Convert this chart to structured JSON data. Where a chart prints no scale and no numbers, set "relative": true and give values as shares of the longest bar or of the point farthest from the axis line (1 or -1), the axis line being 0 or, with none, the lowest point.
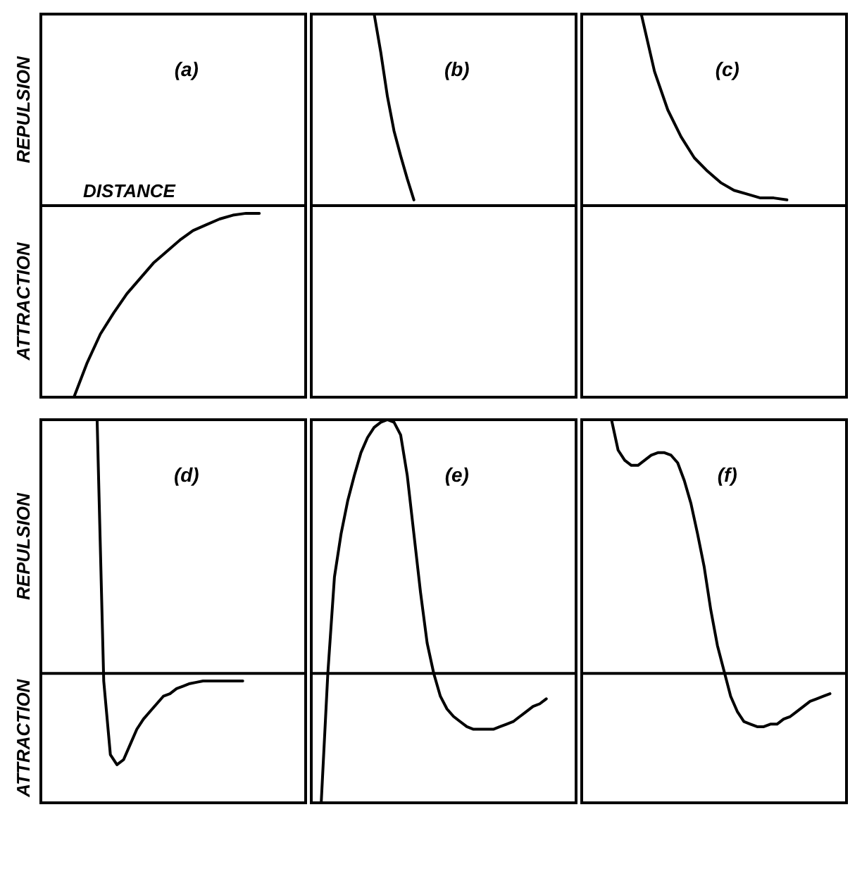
{
  "chart_data": [
    {
      "type": "line",
      "title": "(a)",
      "ylabel": "REPULSION",
      "xlabel": "DISTANCE",
      "annotations": [
        "ATTRACTION"
      ],
      "relative": true,
      "marker": "none",
      "line_style": "solid",
      "categories": [
        null,
        null,
        null,
        null,
        null,
        null,
        null,
        null,
        null,
        null,
        null,
        null,
        null,
        null,
        null,
        null,
        null,
        null,
        null,
        null
      ],
      "series": [
        {
          "color": "#000000",
          "values": [
            null,
            null,
            -1,
            -0.82,
            -0.67,
            -0.56,
            -0.46,
            -0.38,
            -0.3,
            -0.24,
            -0.18,
            -0.13,
            -0.1,
            -0.07,
            -0.05,
            -0.04,
            -0.04,
            null,
            null,
            null
          ]
        }
      ]
    },
    {
      "type": "line",
      "title": "(b)",
      "relative": true,
      "marker": "none",
      "line_style": "solid",
      "categories": [
        null,
        null,
        null,
        null,
        null,
        null,
        null,
        null,
        null,
        null,
        null,
        null,
        null,
        null,
        null,
        null,
        null,
        null,
        null,
        null,
        null,
        null,
        null,
        null,
        null,
        null,
        null,
        null,
        null,
        null,
        null,
        null,
        null,
        null,
        null,
        null,
        null,
        null,
        null,
        null
      ],
      "series": [
        {
          "color": "#000000",
          "values": [
            null,
            null,
            null,
            null,
            null,
            null,
            null,
            null,
            null,
            1,
            0.8,
            0.57,
            0.39,
            0.26,
            0.14,
            0.03,
            null,
            null,
            null,
            null,
            null,
            null,
            null,
            null,
            null,
            null,
            null,
            null,
            null,
            null,
            null,
            null,
            null,
            null,
            null,
            null,
            null,
            null,
            null,
            null
          ]
        }
      ]
    },
    {
      "type": "line",
      "title": "(c)",
      "relative": true,
      "marker": "none",
      "line_style": "solid",
      "categories": [
        null,
        null,
        null,
        null,
        null,
        null,
        null,
        null,
        null,
        null,
        null,
        null,
        null,
        null,
        null,
        null,
        null,
        null,
        null,
        null
      ],
      "series": [
        {
          "color": "#000000",
          "values": [
            null,
            null,
            null,
            null,
            1,
            0.7,
            0.5,
            0.36,
            0.25,
            0.18,
            0.12,
            0.08,
            0.06,
            0.04,
            0.04,
            0.03,
            null,
            null,
            null,
            null
          ]
        }
      ]
    },
    {
      "type": "line",
      "title": "(d)",
      "ylabel": "REPULSION",
      "annotations": [
        "ATTRACTION"
      ],
      "relative": true,
      "marker": "none",
      "line_style": "solid",
      "categories": [
        null,
        null,
        null,
        null,
        null,
        null,
        null,
        null,
        null,
        null,
        null,
        null,
        null,
        null,
        null,
        null,
        null,
        null,
        null,
        null,
        null,
        null,
        null,
        null,
        null,
        null,
        null,
        null,
        null,
        null,
        null,
        null,
        null,
        null,
        null,
        null,
        null,
        null,
        null,
        null
      ],
      "series": [
        {
          "color": "#000000",
          "values": [
            null,
            null,
            null,
            null,
            null,
            null,
            null,
            null,
            1,
            -0.03,
            -0.32,
            -0.36,
            -0.34,
            -0.28,
            -0.22,
            -0.18,
            -0.15,
            -0.12,
            -0.09,
            -0.08,
            -0.06,
            -0.05,
            -0.04,
            -0.035,
            -0.03,
            -0.03,
            -0.03,
            -0.03,
            -0.03,
            -0.03,
            -0.03,
            null,
            null,
            null,
            null,
            null,
            null,
            null,
            null,
            null
          ]
        }
      ]
    },
    {
      "type": "line",
      "title": "(e)",
      "relative": true,
      "marker": "none",
      "line_style": "solid",
      "categories": [
        null,
        null,
        null,
        null,
        null,
        null,
        null,
        null,
        null,
        null,
        null,
        null,
        null,
        null,
        null,
        null,
        null,
        null,
        null,
        null,
        null,
        null,
        null,
        null,
        null,
        null,
        null,
        null,
        null,
        null,
        null,
        null,
        null,
        null,
        null,
        null,
        null,
        null,
        null,
        null
      ],
      "series": [
        {
          "color": "#000000",
          "values": [
            null,
            -0.51,
            0,
            0.38,
            0.55,
            0.68,
            0.78,
            0.87,
            0.93,
            0.97,
            0.99,
            1,
            0.99,
            0.94,
            0.78,
            0.55,
            0.32,
            0.12,
            0,
            -0.09,
            -0.14,
            -0.17,
            -0.19,
            -0.21,
            -0.22,
            -0.22,
            -0.22,
            -0.22,
            -0.21,
            -0.2,
            -0.19,
            -0.17,
            -0.15,
            -0.13,
            -0.12,
            -0.1,
            null,
            null,
            null,
            null
          ]
        }
      ]
    },
    {
      "type": "line",
      "title": "(f)",
      "relative": true,
      "marker": "none",
      "line_style": "solid",
      "categories": [
        null,
        null,
        null,
        null,
        null,
        null,
        null,
        null,
        null,
        null,
        null,
        null,
        null,
        null,
        null,
        null,
        null,
        null,
        null,
        null,
        null,
        null,
        null,
        null,
        null,
        null,
        null,
        null,
        null,
        null,
        null,
        null,
        null,
        null,
        null,
        null,
        null,
        null,
        null,
        null
      ],
      "series": [
        {
          "color": "#000000",
          "values": [
            null,
            null,
            null,
            null,
            1,
            0.88,
            0.84,
            0.82,
            0.82,
            0.84,
            0.86,
            0.87,
            0.87,
            0.86,
            0.83,
            0.76,
            0.67,
            0.55,
            0.42,
            0.25,
            0.11,
            0.01,
            -0.09,
            -0.15,
            -0.19,
            -0.2,
            -0.21,
            -0.21,
            -0.2,
            -0.2,
            -0.18,
            -0.17,
            -0.15,
            -0.13,
            -0.11,
            -0.1,
            -0.09,
            -0.08,
            null,
            null
          ]
        }
      ]
    }
  ]
}
